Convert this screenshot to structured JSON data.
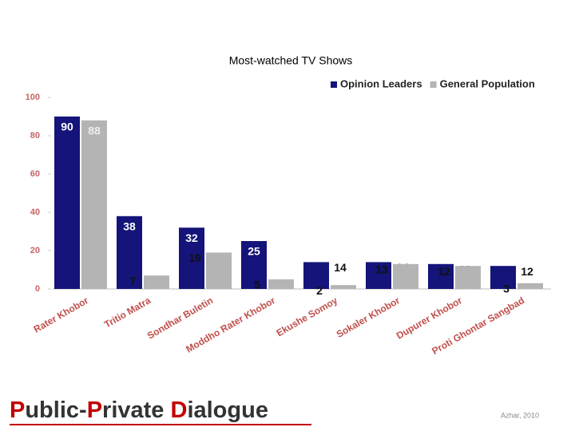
{
  "chart_data": {
    "type": "bar",
    "title": "Most-watched TV Shows",
    "categories": [
      "Rater Khobor",
      "Tritio Matra",
      "Sondhar Buletin",
      "Moddho Rater Khobor",
      "Ekushe Somoy",
      "Sokaler Khobor",
      "Dupurer Khobor",
      "Proti Ghontar Sangbad"
    ],
    "series": [
      {
        "name": "Opinion Leaders",
        "color": "#14147a",
        "values": [
          90,
          38,
          32,
          25,
          14,
          14,
          13,
          12
        ]
      },
      {
        "name": "General Population",
        "color": "#b4b4b4",
        "values": [
          88,
          7,
          19,
          5,
          2,
          13,
          12,
          3
        ]
      }
    ],
    "ylim": [
      0,
      100
    ],
    "yticks": [
      0,
      20,
      40,
      60,
      80,
      100
    ],
    "legend": "top-right"
  },
  "footer": {
    "logo": [
      "P",
      "ublic-",
      "P",
      "rivate ",
      "D",
      "ialogue"
    ],
    "credit": "Azhar, 2010"
  }
}
